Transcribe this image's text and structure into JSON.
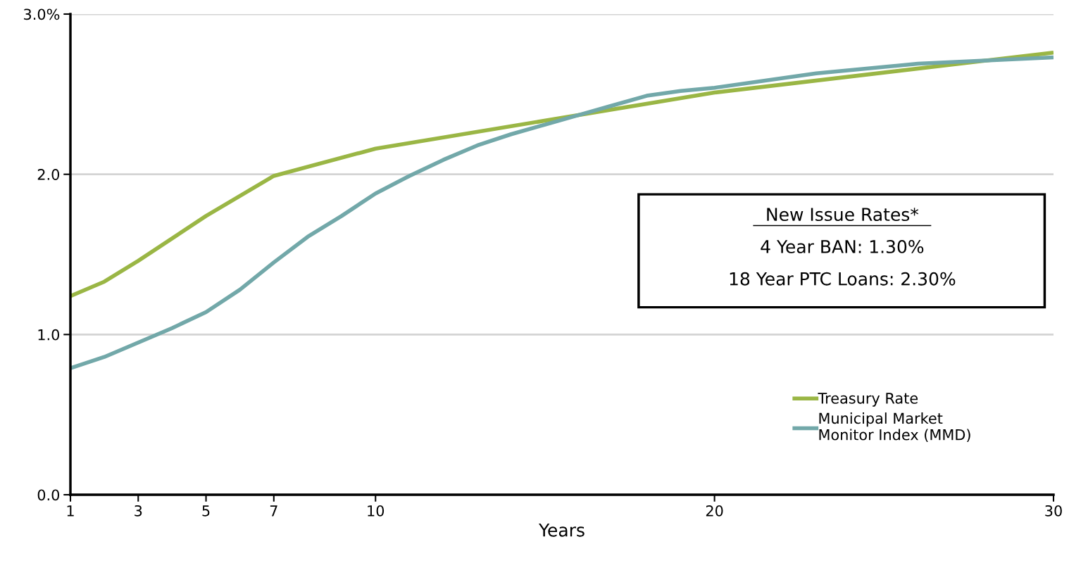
{
  "chart_data": {
    "type": "line",
    "xlabel": "Years",
    "xlim": [
      1,
      30
    ],
    "xticks": [
      1,
      3,
      5,
      7,
      10,
      20,
      30
    ],
    "ylim": [
      0,
      3.0
    ],
    "yticks": [
      {
        "value": 0,
        "label": "0.0"
      },
      {
        "value": 1.0,
        "label": "1.0"
      },
      {
        "value": 2.0,
        "label": "2.0"
      },
      {
        "value": 3.0,
        "label": "3.0%"
      }
    ],
    "grid": "y",
    "legend": "bottom right",
    "marker": "none",
    "line_style": "solid",
    "annotations": [
      "New Issue Rates*",
      "4 Year BAN: 1.30%",
      "18 Year PTC Loans: 2.30%"
    ],
    "series": [
      {
        "name": "Treasury Rate",
        "color": "#9ab645",
        "x": [
          1,
          2,
          3,
          5,
          7,
          10,
          20,
          30
        ],
        "values": [
          1.24,
          1.33,
          1.46,
          1.74,
          1.99,
          2.16,
          2.51,
          2.76
        ]
      },
      {
        "name": "Municipal Market Monitor Index (MMD)",
        "color": "#72a8a9",
        "x": [
          1,
          2,
          3,
          4,
          5,
          6,
          7,
          8,
          9,
          10,
          11,
          12,
          13,
          14,
          15,
          16,
          17,
          18,
          19,
          20,
          23,
          26,
          28,
          30
        ],
        "values": [
          0.79,
          0.86,
          0.95,
          1.04,
          1.14,
          1.28,
          1.45,
          1.61,
          1.74,
          1.88,
          1.99,
          2.09,
          2.18,
          2.25,
          2.31,
          2.37,
          2.43,
          2.49,
          2.52,
          2.54,
          2.63,
          2.69,
          2.71,
          2.73
        ]
      }
    ]
  }
}
